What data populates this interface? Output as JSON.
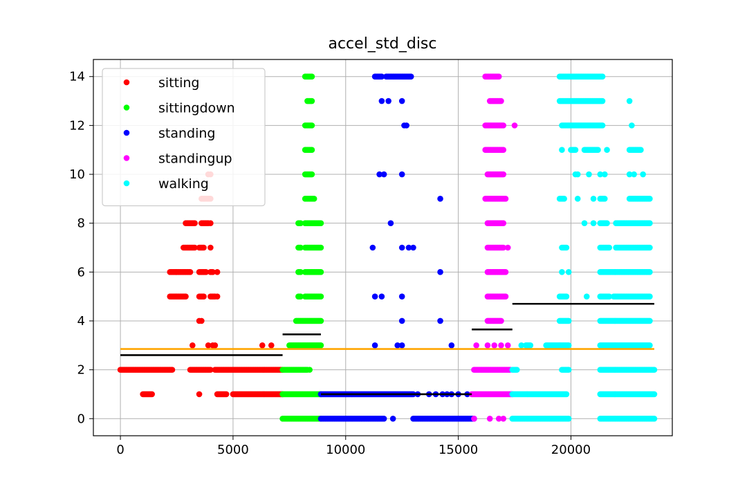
{
  "chart_data": {
    "type": "scatter",
    "title": "accel_std_disc",
    "xlabel": "",
    "ylabel": "",
    "xlim": [
      -1200,
      24500
    ],
    "ylim": [
      -0.7,
      14.7
    ],
    "xticks": [
      0,
      5000,
      10000,
      15000,
      20000
    ],
    "xtick_labels": [
      "0",
      "5000",
      "10000",
      "15000",
      "20000"
    ],
    "yticks": [
      0,
      2,
      4,
      6,
      8,
      10,
      12,
      14
    ],
    "ytick_labels": [
      "0",
      "2",
      "4",
      "6",
      "8",
      "10",
      "12",
      "14"
    ],
    "grid": true,
    "legend_position": "top-left",
    "series": [
      {
        "name": "sitting",
        "color": "#ff0000",
        "segments": [
          {
            "y": 2,
            "ranges": [
              [
                0,
                2300
              ],
              [
                3100,
                4000
              ],
              [
                4200,
                7200
              ]
            ]
          },
          {
            "y": 1,
            "ranges": [
              [
                1000,
                1400
              ],
              [
                4300,
                4700
              ],
              [
                5000,
                7200
              ]
            ],
            "points": [
              3500
            ]
          },
          {
            "y": 3,
            "points": [
              3200,
              3900,
              4100,
              4200,
              6300,
              6700
            ]
          },
          {
            "y": 4,
            "points": [
              3500,
              3600
            ]
          },
          {
            "y": 5,
            "ranges": [
              [
                2200,
                2900
              ],
              [
                3500,
                3700
              ],
              [
                4000,
                4200
              ]
            ],
            "points": [
              4300
            ]
          },
          {
            "y": 6,
            "ranges": [
              [
                2200,
                3100
              ],
              [
                3500,
                3800
              ],
              [
                4000,
                4100
              ]
            ],
            "points": [
              4300
            ]
          },
          {
            "y": 7,
            "ranges": [
              [
                2800,
                3300
              ],
              [
                3500,
                3700
              ]
            ],
            "points": [
              4000
            ]
          },
          {
            "y": 8,
            "ranges": [
              [
                2900,
                3300
              ],
              [
                3600,
                3900
              ]
            ],
            "points": [
              4000
            ]
          },
          {
            "y": 9,
            "ranges": [
              [
                3600,
                4000
              ]
            ]
          },
          {
            "y": 10,
            "points": [
              3900,
              4000
            ]
          }
        ]
      },
      {
        "name": "sittingdown",
        "color": "#00ff00",
        "segments": [
          {
            "y": 0,
            "ranges": [
              [
                7200,
                8900
              ]
            ]
          },
          {
            "y": 1,
            "ranges": [
              [
                7200,
                8900
              ]
            ]
          },
          {
            "y": 2,
            "ranges": [
              [
                7200,
                8300
              ]
            ],
            "points": [
              8400
            ]
          },
          {
            "y": 3,
            "ranges": [
              [
                7500,
                8900
              ]
            ]
          },
          {
            "y": 4,
            "ranges": [
              [
                7800,
                8900
              ]
            ]
          },
          {
            "y": 5,
            "ranges": [
              [
                7900,
                8000
              ],
              [
                8200,
                8900
              ]
            ]
          },
          {
            "y": 6,
            "ranges": [
              [
                7900,
                8000
              ],
              [
                8200,
                8900
              ]
            ]
          },
          {
            "y": 7,
            "ranges": [
              [
                7900,
                8000
              ],
              [
                8200,
                8900
              ]
            ]
          },
          {
            "y": 8,
            "ranges": [
              [
                7900,
                8000
              ],
              [
                8200,
                8900
              ]
            ]
          },
          {
            "y": 9,
            "ranges": [
              [
                8200,
                8600
              ]
            ]
          },
          {
            "y": 10,
            "ranges": [
              [
                8200,
                8500
              ]
            ]
          },
          {
            "y": 11,
            "ranges": [
              [
                8200,
                8500
              ]
            ]
          },
          {
            "y": 12,
            "ranges": [
              [
                8200,
                8500
              ]
            ]
          },
          {
            "y": 13,
            "ranges": [
              [
                8300,
                8500
              ]
            ]
          },
          {
            "y": 14,
            "ranges": [
              [
                8200,
                8500
              ]
            ]
          }
        ]
      },
      {
        "name": "standing",
        "color": "#0000ff",
        "segments": [
          {
            "y": 0,
            "ranges": [
              [
                8900,
                11700
              ],
              [
                13000,
                15700
              ]
            ],
            "points": [
              12100
            ]
          },
          {
            "y": 1,
            "ranges": [
              [
                8900,
                13000
              ]
            ],
            "points": [
              13200,
              13700,
              14000,
              14300,
              14500,
              14700,
              15000,
              15400
            ]
          },
          {
            "y": 3,
            "points": [
              11300,
              12300,
              12500,
              14700
            ]
          },
          {
            "y": 4,
            "points": [
              12500,
              14200
            ]
          },
          {
            "y": 5,
            "points": [
              11300,
              11600,
              12500
            ]
          },
          {
            "y": 6,
            "points": [
              14200
            ]
          },
          {
            "y": 7,
            "points": [
              11200,
              12500,
              12800,
              13000
            ]
          },
          {
            "y": 8,
            "points": [
              12000
            ]
          },
          {
            "y": 9,
            "points": [
              14200
            ]
          },
          {
            "y": 10,
            "points": [
              11500,
              11700,
              12500
            ]
          },
          {
            "y": 12,
            "points": [
              12600,
              12700
            ]
          },
          {
            "y": 13,
            "points": [
              11600,
              11900,
              12500
            ]
          },
          {
            "y": 14,
            "ranges": [
              [
                11300,
                11600
              ],
              [
                11800,
                12900
              ]
            ]
          }
        ]
      },
      {
        "name": "standingup",
        "color": "#ff00ff",
        "segments": [
          {
            "y": 0,
            "points": [
              15700,
              16400,
              16800,
              17000
            ]
          },
          {
            "y": 1,
            "ranges": [
              [
                15600,
                17400
              ]
            ]
          },
          {
            "y": 2,
            "ranges": [
              [
                15700,
                17300
              ]
            ]
          },
          {
            "y": 3,
            "points": [
              15800,
              16300,
              16600,
              16900,
              17200
            ]
          },
          {
            "y": 4,
            "ranges": [
              [
                16300,
                16900
              ]
            ]
          },
          {
            "y": 5,
            "ranges": [
              [
                16300,
                17100
              ]
            ]
          },
          {
            "y": 6,
            "ranges": [
              [
                16300,
                17100
              ]
            ]
          },
          {
            "y": 7,
            "ranges": [
              [
                16300,
                17000
              ]
            ],
            "points": [
              17200
            ]
          },
          {
            "y": 8,
            "ranges": [
              [
                16300,
                17000
              ]
            ]
          },
          {
            "y": 9,
            "ranges": [
              [
                16200,
                17100
              ]
            ]
          },
          {
            "y": 10,
            "ranges": [
              [
                16300,
                17000
              ]
            ]
          },
          {
            "y": 11,
            "ranges": [
              [
                16200,
                17000
              ]
            ]
          },
          {
            "y": 12,
            "ranges": [
              [
                16200,
                17000
              ]
            ],
            "points": [
              17500
            ]
          },
          {
            "y": 13,
            "ranges": [
              [
                16400,
                16900
              ]
            ]
          },
          {
            "y": 14,
            "ranges": [
              [
                16200,
                16800
              ]
            ]
          }
        ]
      },
      {
        "name": "walking",
        "color": "#00ffff",
        "segments": [
          {
            "y": 0,
            "ranges": [
              [
                17400,
                19900
              ],
              [
                21300,
                23700
              ]
            ]
          },
          {
            "y": 1,
            "ranges": [
              [
                17400,
                19800
              ],
              [
                21300,
                23700
              ]
            ]
          },
          {
            "y": 2,
            "ranges": [
              [
                17400,
                17600
              ],
              [
                19600,
                19900
              ],
              [
                21300,
                23700
              ]
            ]
          },
          {
            "y": 3,
            "ranges": [
              [
                18000,
                18200
              ],
              [
                18900,
                19500
              ],
              [
                19500,
                19900
              ],
              [
                21300,
                23500
              ]
            ],
            "points": [
              17800
            ]
          },
          {
            "y": 4,
            "ranges": [
              [
                19500,
                19900
              ],
              [
                21300,
                23500
              ]
            ]
          },
          {
            "y": 5,
            "ranges": [
              [
                19500,
                19800
              ],
              [
                21300,
                21700
              ],
              [
                21900,
                23500
              ]
            ],
            "points": [
              20700
            ]
          },
          {
            "y": 6,
            "ranges": [
              [
                21300,
                23500
              ]
            ],
            "points": [
              19600,
              19900
            ]
          },
          {
            "y": 7,
            "ranges": [
              [
                19600,
                19800
              ],
              [
                21300,
                21700
              ],
              [
                22000,
                23500
              ]
            ]
          },
          {
            "y": 8,
            "ranges": [
              [
                21300,
                21600
              ],
              [
                22000,
                23500
              ]
            ],
            "points": [
              20600,
              21000
            ]
          },
          {
            "y": 9,
            "ranges": [
              [
                19500,
                19700
              ],
              [
                21300,
                21500
              ],
              [
                22600,
                23500
              ]
            ],
            "points": [
              20300,
              21000
            ]
          },
          {
            "y": 10,
            "points": [
              20200,
              20300,
              20800,
              21300,
              21500,
              22600,
              22800,
              23200
            ]
          },
          {
            "y": 11,
            "ranges": [
              [
                20000,
                20200
              ],
              [
                20600,
                21200
              ],
              [
                22600,
                23100
              ]
            ],
            "points": [
              19600,
              21600
            ]
          },
          {
            "y": 12,
            "ranges": [
              [
                19600,
                21400
              ]
            ],
            "points": [
              22700
            ]
          },
          {
            "y": 13,
            "ranges": [
              [
                19500,
                21400
              ]
            ],
            "points": [
              22600
            ]
          },
          {
            "y": 14,
            "ranges": [
              [
                19500,
                21400
              ]
            ]
          }
        ]
      }
    ],
    "reference_lines": [
      {
        "kind": "segment",
        "color": "#000000",
        "x": [
          0,
          7200
        ],
        "y": 2.6
      },
      {
        "kind": "segment",
        "color": "#000000",
        "x": [
          7200,
          8900
        ],
        "y": 3.45
      },
      {
        "kind": "segment",
        "color": "#000000",
        "x": [
          8900,
          15600
        ],
        "y": 1.0
      },
      {
        "kind": "segment",
        "color": "#000000",
        "x": [
          15600,
          17400
        ],
        "y": 3.65
      },
      {
        "kind": "segment",
        "color": "#000000",
        "x": [
          17400,
          23700
        ],
        "y": 4.7
      },
      {
        "kind": "overall",
        "color": "#ffa500",
        "x": [
          0,
          23700
        ],
        "y": 2.85
      }
    ]
  }
}
